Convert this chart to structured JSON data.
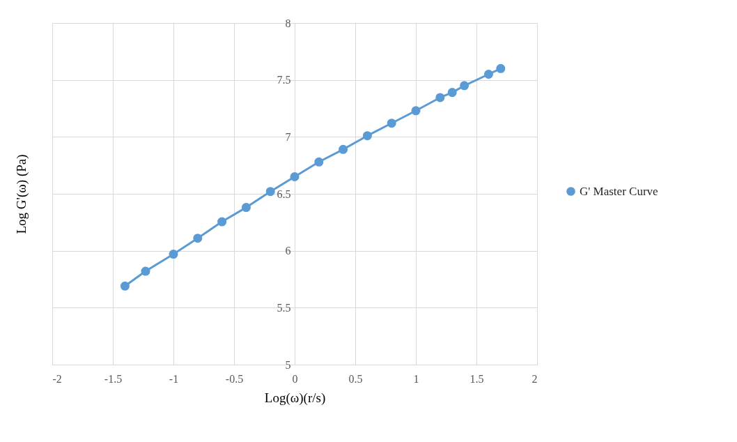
{
  "chart_data": {
    "type": "line",
    "xlabel": "Log(ω)(r/s)",
    "ylabel": "Log G'(ω) (Pa)",
    "xlim": [
      -2,
      2
    ],
    "xticks": [
      -2,
      -1.5,
      -1,
      -0.5,
      0,
      0.5,
      1,
      1.5,
      2
    ],
    "ylim": [
      5,
      8
    ],
    "yticks": [
      5,
      5.5,
      6,
      6.5,
      7,
      7.5,
      8
    ],
    "grid": true,
    "legend": "right",
    "marker": "circle",
    "series": [
      {
        "name": "G' Master Curve",
        "color": "#5b9bd5",
        "x": [
          -1.4,
          -1.23,
          -1,
          -0.8,
          -0.6,
          -0.4,
          -0.2,
          0,
          0.2,
          0.4,
          0.6,
          0.8,
          1,
          1.2,
          1.3,
          1.4,
          1.6,
          1.7
        ],
        "values": [
          5.69,
          5.82,
          5.97,
          6.11,
          6.255,
          6.38,
          6.52,
          6.65,
          6.78,
          6.89,
          7.01,
          7.12,
          7.23,
          7.345,
          7.39,
          7.45,
          7.55,
          7.6
        ]
      }
    ]
  }
}
